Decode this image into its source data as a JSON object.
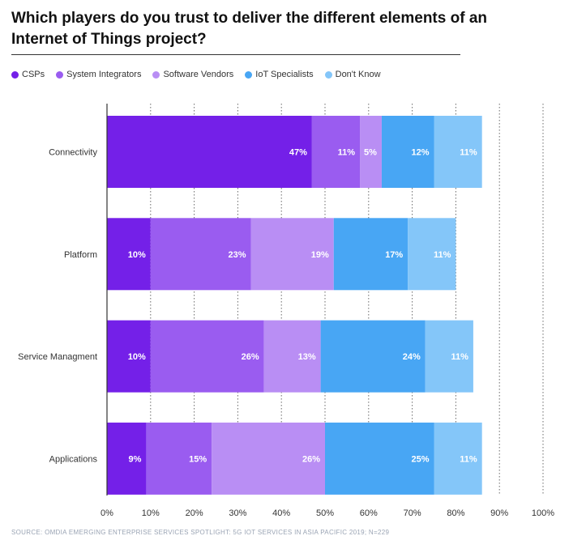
{
  "title": "Which players do you trust to deliver the different elements of an Internet of Things project?",
  "source": "SOURCE: OMDIA EMERGING ENTERPRISE SERVICES SPOTLIGHT: 5G IOT SERVICES IN ASIA PACIFIC 2019; N=229",
  "chart_data": {
    "type": "bar",
    "orientation": "horizontal",
    "stacked": true,
    "categories": [
      "Connectivity",
      "Platform",
      "Service Managment",
      "Applications"
    ],
    "series": [
      {
        "name": "CSPs",
        "color": "#7420e8",
        "values": [
          47,
          10,
          10,
          9
        ]
      },
      {
        "name": "System Integrators",
        "color": "#9a5cf0",
        "values": [
          11,
          23,
          26,
          15
        ]
      },
      {
        "name": "Software Vendors",
        "color": "#b98ef4",
        "values": [
          5,
          19,
          13,
          26
        ]
      },
      {
        "name": "IoT Specialists",
        "color": "#48a6f4",
        "values": [
          12,
          17,
          24,
          25
        ]
      },
      {
        "name": "Don't Know",
        "color": "#84c6f9",
        "values": [
          11,
          11,
          11,
          11
        ]
      }
    ],
    "x_ticks": [
      "0%",
      "10%",
      "20%",
      "30%",
      "40%",
      "50%",
      "60%",
      "70%",
      "80%",
      "90%",
      "100%"
    ],
    "xlim": [
      0,
      100
    ],
    "legend_position": "top",
    "grid": "vertical-dotted"
  }
}
